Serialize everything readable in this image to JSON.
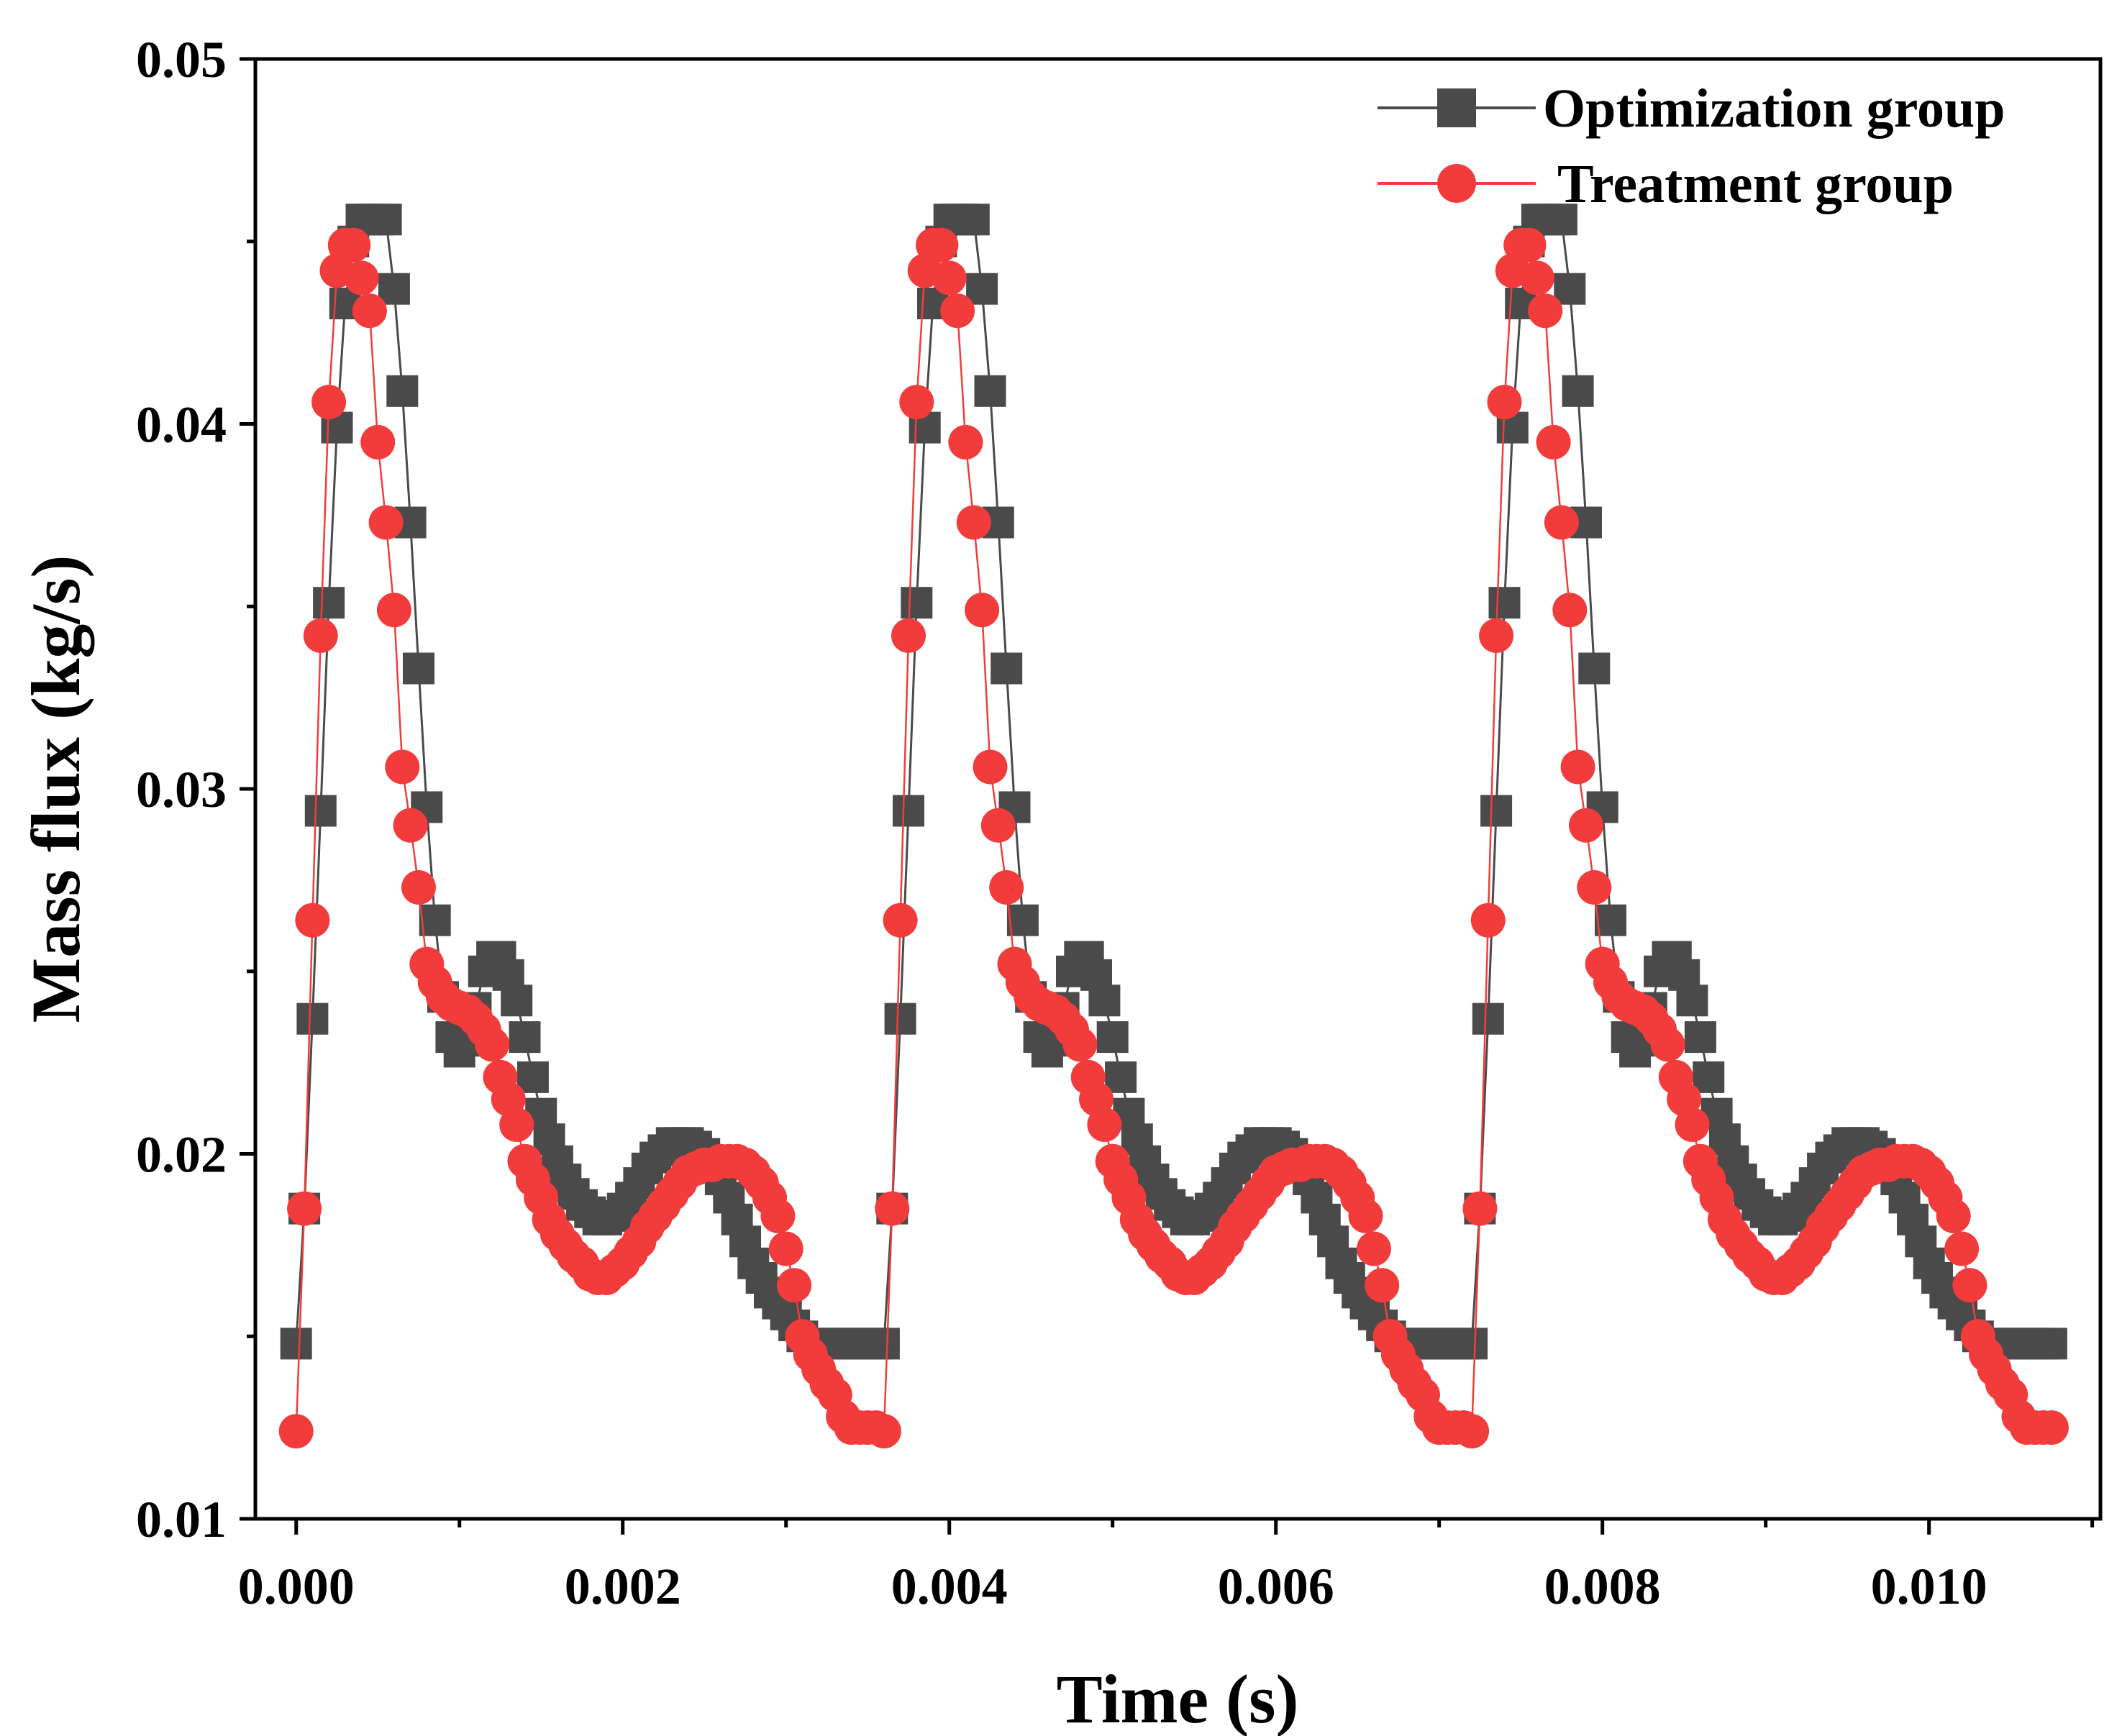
{
  "chart_data": {
    "type": "line",
    "title": "",
    "xlabel": "Time (s)",
    "ylabel": "Mass flux (kg/s)",
    "xlim": [
      -0.00025,
      0.01105
    ],
    "ylim": [
      0.01,
      0.05
    ],
    "xticks": [
      0.0,
      0.002,
      0.004,
      0.006,
      0.008,
      0.01
    ],
    "xtick_labels": [
      "0.000",
      "0.002",
      "0.004",
      "0.006",
      "0.008",
      "0.010"
    ],
    "yticks": [
      0.01,
      0.02,
      0.03,
      0.04,
      0.05
    ],
    "ytick_labels": [
      "0.01",
      "0.02",
      "0.03",
      "0.04",
      "0.05"
    ],
    "legend_position": "top-right",
    "period": 0.0036,
    "cycles": 3,
    "series": [
      {
        "name": "Optimization group",
        "color": "#4a4a4a",
        "marker": "square",
        "x_cycle": [
          0.0,
          5e-05,
          0.0001,
          0.00015,
          0.0002,
          0.00025,
          0.0003,
          0.00035,
          0.0004,
          0.00045,
          0.0005,
          0.00055,
          0.0006,
          0.00065,
          0.0007,
          0.00075,
          0.0008,
          0.00085,
          0.0009,
          0.00095,
          0.001,
          0.00105,
          0.0011,
          0.00115,
          0.0012,
          0.00125,
          0.0013,
          0.00135,
          0.0014,
          0.00145,
          0.0015,
          0.00155,
          0.0016,
          0.00165,
          0.0017,
          0.00175,
          0.0018,
          0.00185,
          0.0019,
          0.00195,
          0.002,
          0.00205,
          0.0021,
          0.00215,
          0.0022,
          0.00225,
          0.0023,
          0.00235,
          0.0024,
          0.00245,
          0.0025,
          0.00255,
          0.0026,
          0.00265,
          0.0027,
          0.00275,
          0.0028,
          0.00285,
          0.0029,
          0.00295,
          0.003,
          0.00305,
          0.0031,
          0.00315,
          0.0032,
          0.00325,
          0.0033,
          0.00335,
          0.0034,
          0.00345,
          0.0035,
          0.00355
        ],
        "y_cycle": [
          0.0148,
          0.0185,
          0.0237,
          0.0294,
          0.0351,
          0.0399,
          0.0433,
          0.045,
          0.0456,
          0.0456,
          0.0456,
          0.0456,
          0.0437,
          0.0409,
          0.0373,
          0.0333,
          0.0295,
          0.0264,
          0.0243,
          0.0232,
          0.0228,
          0.0231,
          0.024,
          0.025,
          0.0254,
          0.0254,
          0.0249,
          0.0242,
          0.0232,
          0.0221,
          0.0211,
          0.0204,
          0.0198,
          0.0193,
          0.0189,
          0.0186,
          0.0184,
          0.0182,
          0.0182,
          0.0183,
          0.0185,
          0.0188,
          0.0192,
          0.0196,
          0.0199,
          0.0201,
          0.0203,
          0.0203,
          0.0203,
          0.0202,
          0.02,
          0.0197,
          0.0193,
          0.0188,
          0.0182,
          0.0176,
          0.017,
          0.0166,
          0.0162,
          0.0159,
          0.0156,
          0.0153,
          0.015,
          0.0148,
          0.0148,
          0.0148,
          0.0148,
          0.0148,
          0.0148,
          0.0148,
          0.0148,
          0.0148
        ]
      },
      {
        "name": "Treatment group",
        "color": "#f23c3c",
        "marker": "circle",
        "x_cycle": [
          0.0,
          5e-05,
          0.0001,
          0.00015,
          0.0002,
          0.00025,
          0.0003,
          0.00035,
          0.0004,
          0.00045,
          0.0005,
          0.00055,
          0.0006,
          0.00065,
          0.0007,
          0.00075,
          0.0008,
          0.00085,
          0.0009,
          0.00095,
          0.001,
          0.00105,
          0.0011,
          0.00115,
          0.0012,
          0.00125,
          0.0013,
          0.00135,
          0.0014,
          0.00145,
          0.0015,
          0.00155,
          0.0016,
          0.00165,
          0.0017,
          0.00175,
          0.0018,
          0.00185,
          0.0019,
          0.00195,
          0.002,
          0.00205,
          0.0021,
          0.00215,
          0.0022,
          0.00225,
          0.0023,
          0.00235,
          0.0024,
          0.00245,
          0.0025,
          0.00255,
          0.0026,
          0.00265,
          0.0027,
          0.00275,
          0.0028,
          0.00285,
          0.0029,
          0.00295,
          0.003,
          0.00305,
          0.0031,
          0.00315,
          0.0032,
          0.00325,
          0.0033,
          0.00335,
          0.0034,
          0.00345,
          0.0035,
          0.00355
        ],
        "y_cycle": [
          0.0124,
          0.0185,
          0.0264,
          0.0342,
          0.0406,
          0.0442,
          0.0449,
          0.0449,
          0.044,
          0.0431,
          0.0395,
          0.0373,
          0.0349,
          0.0306,
          0.029,
          0.0273,
          0.0252,
          0.0247,
          0.0243,
          0.0241,
          0.024,
          0.0239,
          0.0237,
          0.0234,
          0.023,
          0.0221,
          0.0215,
          0.0208,
          0.0198,
          0.0193,
          0.0188,
          0.0182,
          0.0178,
          0.0175,
          0.0172,
          0.017,
          0.0167,
          0.0166,
          0.0166,
          0.0168,
          0.017,
          0.0173,
          0.0176,
          0.018,
          0.0183,
          0.0186,
          0.0189,
          0.0192,
          0.0195,
          0.0196,
          0.0197,
          0.0197,
          0.0198,
          0.0198,
          0.0198,
          0.0197,
          0.0195,
          0.0192,
          0.0188,
          0.0183,
          0.0174,
          0.0164,
          0.015,
          0.0145,
          0.0141,
          0.0137,
          0.0134,
          0.0128,
          0.0125,
          0.0125,
          0.0125,
          0.0125
        ]
      }
    ]
  }
}
